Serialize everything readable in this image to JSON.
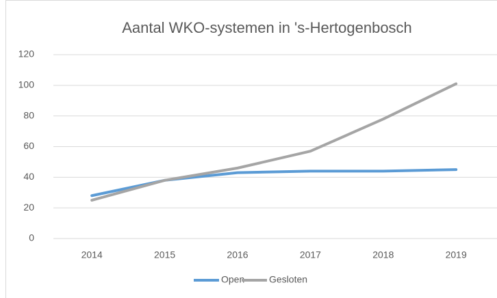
{
  "chart_data": {
    "type": "line",
    "title": "Aantal WKO-systemen in 's-Hertogenbosch",
    "categories": [
      "2014",
      "2015",
      "2016",
      "2017",
      "2018",
      "2019"
    ],
    "series": [
      {
        "name": "Open",
        "color": "#5b9bd5",
        "values": [
          28,
          38,
          43,
          44,
          44,
          45
        ]
      },
      {
        "name": "Gesloten",
        "color": "#a5a5a5",
        "values": [
          25,
          38,
          46,
          57,
          78,
          101
        ]
      }
    ],
    "ylim": [
      0,
      120
    ],
    "yticks": [
      0,
      20,
      40,
      60,
      80,
      100,
      120
    ],
    "grid": true,
    "legend": "bottom"
  }
}
